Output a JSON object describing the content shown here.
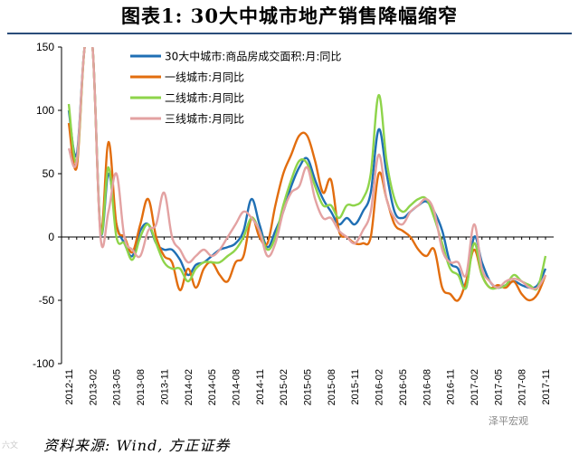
{
  "title": "图表1:  30大中城市地产销售降幅缩窄",
  "source": "资料来源: Wind, 方正证券",
  "watermark_left": "六文",
  "watermark_right": "泽平宏观",
  "chart_data": {
    "type": "line",
    "ylim": [
      -100,
      150
    ],
    "yticks": [
      150,
      100,
      50,
      0,
      -50,
      -100
    ],
    "categories": [
      "2012-11",
      "2012-12",
      "2013-01",
      "2013-02",
      "2013-03",
      "2013-04",
      "2013-05",
      "2013-06",
      "2013-07",
      "2013-08",
      "2013-09",
      "2013-10",
      "2013-11",
      "2013-12",
      "2014-01",
      "2014-02",
      "2014-03",
      "2014-04",
      "2014-05",
      "2014-06",
      "2014-07",
      "2014-08",
      "2014-09",
      "2014-10",
      "2014-11",
      "2014-12",
      "2015-01",
      "2015-02",
      "2015-03",
      "2015-04",
      "2015-05",
      "2015-06",
      "2015-07",
      "2015-08",
      "2015-09",
      "2015-10",
      "2015-11",
      "2015-12",
      "2016-01",
      "2016-02",
      "2016-03",
      "2016-04",
      "2016-05",
      "2016-06",
      "2016-07",
      "2016-08",
      "2016-09",
      "2016-10",
      "2016-11",
      "2016-12",
      "2017-01",
      "2017-02",
      "2017-03",
      "2017-04",
      "2017-05",
      "2017-06",
      "2017-07",
      "2017-08",
      "2017-09",
      "2017-10",
      "2017-11"
    ],
    "xtick_labels": [
      "2012-11",
      "2013-02",
      "2013-05",
      "2013-08",
      "2013-11",
      "2014-02",
      "2014-05",
      "2014-08",
      "2014-11",
      "2015-02",
      "2015-05",
      "2015-08",
      "2015-11",
      "2016-02",
      "2016-05",
      "2016-08",
      "2016-11",
      "2017-02",
      "2017-05",
      "2017-08",
      "2017-11"
    ],
    "series": [
      {
        "name": "30大中城市:商品房成交面积:月:同比",
        "color": "#1f6fb4",
        "values": [
          100,
          65,
          150,
          150,
          5,
          50,
          10,
          -5,
          -15,
          5,
          10,
          -5,
          -10,
          -10,
          -18,
          -30,
          -22,
          -20,
          -15,
          -10,
          -8,
          -5,
          5,
          30,
          10,
          -8,
          5,
          20,
          40,
          55,
          62,
          45,
          30,
          20,
          10,
          15,
          10,
          20,
          35,
          85,
          50,
          20,
          15,
          20,
          25,
          28,
          20,
          5,
          -20,
          -25,
          -40,
          0,
          -20,
          -35,
          -40,
          -38,
          -35,
          -38,
          -40,
          -38,
          -25
        ]
      },
      {
        "name": "一线城市:月同比",
        "color": "#e26d0e",
        "values": [
          90,
          55,
          150,
          150,
          5,
          75,
          10,
          0,
          -12,
          10,
          30,
          0,
          -15,
          -20,
          -42,
          -25,
          -40,
          -25,
          -20,
          -30,
          -35,
          -20,
          -15,
          15,
          0,
          -5,
          25,
          50,
          65,
          80,
          80,
          60,
          35,
          45,
          5,
          0,
          -5,
          -5,
          0,
          50,
          30,
          10,
          5,
          0,
          -10,
          -15,
          -10,
          -40,
          -45,
          -50,
          -35,
          -10,
          -30,
          -40,
          -38,
          -40,
          -35,
          -45,
          -50,
          -45,
          -30
        ]
      },
      {
        "name": "二线城市:月同比",
        "color": "#8ed44a",
        "values": [
          105,
          60,
          150,
          150,
          5,
          55,
          0,
          -5,
          -18,
          0,
          10,
          -5,
          -20,
          -25,
          -25,
          -35,
          -25,
          -20,
          -20,
          -20,
          -15,
          -10,
          0,
          15,
          5,
          -10,
          0,
          25,
          45,
          60,
          58,
          40,
          25,
          25,
          15,
          25,
          25,
          30,
          50,
          112,
          60,
          30,
          20,
          25,
          30,
          30,
          15,
          -5,
          -25,
          -30,
          -40,
          -5,
          -30,
          -40,
          -40,
          -38,
          -30,
          -35,
          -38,
          -40,
          -15
        ]
      },
      {
        "name": "三线城市:月同比",
        "color": "#e3a2a2",
        "values": [
          70,
          60,
          150,
          150,
          0,
          20,
          50,
          0,
          -10,
          -15,
          5,
          10,
          35,
          0,
          -10,
          -20,
          -15,
          -10,
          -15,
          -10,
          0,
          10,
          20,
          15,
          5,
          -15,
          -5,
          20,
          35,
          40,
          55,
          30,
          15,
          15,
          5,
          0,
          -5,
          5,
          20,
          65,
          30,
          15,
          10,
          20,
          25,
          30,
          20,
          -10,
          -20,
          -20,
          -30,
          10,
          -25,
          -35,
          -40,
          -35,
          -33,
          -35,
          -40,
          -40,
          -30
        ]
      }
    ]
  }
}
